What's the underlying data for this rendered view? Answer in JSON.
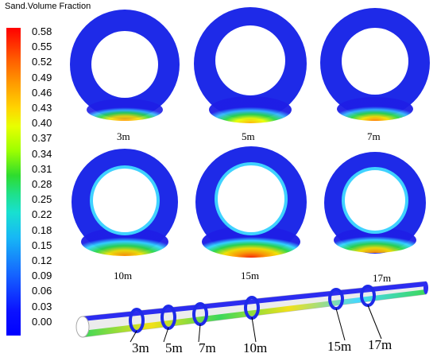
{
  "legend": {
    "title": "Sand.Volume Fraction",
    "ticks": [
      "0.58",
      "0.55",
      "0.52",
      "0.49",
      "0.46",
      "0.43",
      "0.40",
      "0.37",
      "0.34",
      "0.31",
      "0.28",
      "0.25",
      "0.22",
      "0.18",
      "0.15",
      "0.12",
      "0.09",
      "0.06",
      "0.03",
      "0.00"
    ]
  },
  "rings": [
    {
      "label": "3m"
    },
    {
      "label": "5m"
    },
    {
      "label": "7m"
    },
    {
      "label": "10m"
    },
    {
      "label": "15m"
    },
    {
      "label": "17m"
    }
  ],
  "pipe": {
    "labels": [
      "3m",
      "5m",
      "7m",
      "10m",
      "15m",
      "17m"
    ]
  },
  "colors": {
    "blue": "#1e1ee6",
    "cyan": "#33d6ff",
    "green": "#28d64a",
    "yellow": "#f2e000",
    "orange": "#ff7a00",
    "red": "#ff2a00"
  }
}
